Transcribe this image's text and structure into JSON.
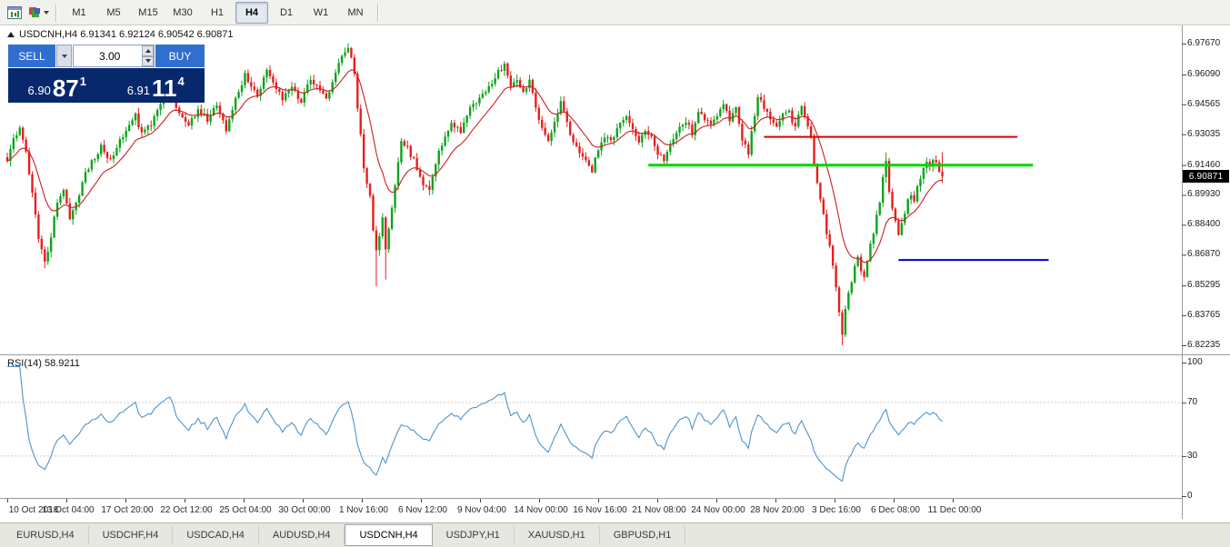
{
  "toolbar": {
    "timeframes": [
      {
        "label": "M1",
        "active": false
      },
      {
        "label": "M5",
        "active": false
      },
      {
        "label": "M15",
        "active": false
      },
      {
        "label": "M30",
        "active": false
      },
      {
        "label": "H1",
        "active": false
      },
      {
        "label": "H4",
        "active": true
      },
      {
        "label": "D1",
        "active": false
      },
      {
        "label": "W1",
        "active": false
      },
      {
        "label": "MN",
        "active": false
      }
    ]
  },
  "chart": {
    "title": "USDCNH,H4 6.91341 6.92124 6.90542 6.90871",
    "current_price": "6.90871"
  },
  "one_click": {
    "sell_label": "SELL",
    "buy_label": "BUY",
    "lot_size": "3.00",
    "sell_price": {
      "prefix": "6.90",
      "big": "87",
      "sup": "1"
    },
    "buy_price": {
      "prefix": "6.91",
      "big": "11",
      "sup": "4"
    }
  },
  "rsi": {
    "label": "RSI(14) 58.9211"
  },
  "tabs": [
    {
      "label": "EURUSD,H4",
      "active": false
    },
    {
      "label": "USDCHF,H4",
      "active": false
    },
    {
      "label": "USDCAD,H4",
      "active": false
    },
    {
      "label": "AUDUSD,H4",
      "active": false
    },
    {
      "label": "USDCNH,H4",
      "active": true
    },
    {
      "label": "USDJPY,H1",
      "active": false
    },
    {
      "label": "XAUUSD,H1",
      "active": false
    },
    {
      "label": "GBPUSD,H1",
      "active": false
    }
  ],
  "colors": {
    "candle_up": "#0ea31d",
    "candle_down": "#e32020",
    "ma_line": "#cc2020",
    "rsi_line": "#4f94cd",
    "price_tag_bg": "#000000",
    "panel_navy": "#08286d",
    "button_blue": "#306fd0"
  },
  "chart_data": {
    "type": "candlestick",
    "symbol": "USDCNH",
    "timeframe": "H4",
    "ohlc_current": {
      "open": 6.91341,
      "high": 6.92124,
      "low": 6.90542,
      "close": 6.90871
    },
    "price_axis": {
      "min": 6.82235,
      "max": 6.9767,
      "labels": [
        "6.97670",
        "6.96090",
        "6.94565",
        "6.93035",
        "6.91460",
        "6.89930",
        "6.88400",
        "6.86870",
        "6.85295",
        "6.83765",
        "6.82235"
      ]
    },
    "time_axis": {
      "labels": [
        "10 Oct 2018",
        "13 Oct 04:00",
        "17 Oct 20:00",
        "22 Oct 12:00",
        "25 Oct 04:00",
        "30 Oct 00:00",
        "1 Nov 16:00",
        "6 Nov 12:00",
        "9 Nov 04:00",
        "14 Nov 00:00",
        "16 Nov 16:00",
        "21 Nov 08:00",
        "24 Nov 00:00",
        "28 Nov 20:00",
        "3 Dec 16:00",
        "6 Dec 08:00",
        "11 Dec 00:00"
      ]
    },
    "bars_total": 300,
    "price_path_anchors": [
      [
        0,
        6.918
      ],
      [
        2,
        6.928
      ],
      [
        4,
        6.934
      ],
      [
        6,
        6.922
      ],
      [
        8,
        6.9
      ],
      [
        10,
        6.878
      ],
      [
        12,
        6.864
      ],
      [
        14,
        6.878
      ],
      [
        16,
        6.896
      ],
      [
        18,
        6.903
      ],
      [
        20,
        6.888
      ],
      [
        22,
        6.895
      ],
      [
        25,
        6.911
      ],
      [
        28,
        6.918
      ],
      [
        30,
        6.924
      ],
      [
        33,
        6.917
      ],
      [
        36,
        6.928
      ],
      [
        39,
        6.934
      ],
      [
        41,
        6.94
      ],
      [
        43,
        6.93
      ],
      [
        46,
        6.936
      ],
      [
        49,
        6.946
      ],
      [
        52,
        6.953
      ],
      [
        55,
        6.941
      ],
      [
        58,
        6.935
      ],
      [
        61,
        6.943
      ],
      [
        64,
        6.938
      ],
      [
        67,
        6.945
      ],
      [
        70,
        6.932
      ],
      [
        73,
        6.948
      ],
      [
        76,
        6.961
      ],
      [
        78,
        6.955
      ],
      [
        80,
        6.95
      ],
      [
        83,
        6.964
      ],
      [
        85,
        6.957
      ],
      [
        88,
        6.949
      ],
      [
        91,
        6.954
      ],
      [
        94,
        6.946
      ],
      [
        97,
        6.959
      ],
      [
        100,
        6.952
      ],
      [
        102,
        6.948
      ],
      [
        105,
        6.963
      ],
      [
        107,
        6.97
      ],
      [
        109,
        6.9755
      ],
      [
        111,
        6.962
      ],
      [
        112,
        6.944
      ],
      [
        113,
        6.93
      ],
      [
        114,
        6.914
      ],
      [
        115,
        6.905
      ],
      [
        116,
        6.899
      ],
      [
        117,
        6.882
      ],
      [
        118,
        6.87
      ],
      [
        119,
        6.878
      ],
      [
        120,
        6.888
      ],
      [
        121,
        6.872
      ],
      [
        122,
        6.882
      ],
      [
        124,
        6.905
      ],
      [
        126,
        6.927
      ],
      [
        128,
        6.923
      ],
      [
        130,
        6.917
      ],
      [
        133,
        6.905
      ],
      [
        135,
        6.902
      ],
      [
        138,
        6.922
      ],
      [
        140,
        6.928
      ],
      [
        142,
        6.935
      ],
      [
        145,
        6.932
      ],
      [
        148,
        6.944
      ],
      [
        151,
        6.949
      ],
      [
        154,
        6.955
      ],
      [
        157,
        6.962
      ],
      [
        159,
        6.966
      ],
      [
        161,
        6.954
      ],
      [
        163,
        6.958
      ],
      [
        165,
        6.952
      ],
      [
        167,
        6.957
      ],
      [
        169,
        6.944
      ],
      [
        171,
        6.934
      ],
      [
        173,
        6.928
      ],
      [
        175,
        6.936
      ],
      [
        177,
        6.946
      ],
      [
        179,
        6.936
      ],
      [
        181,
        6.926
      ],
      [
        184,
        6.918
      ],
      [
        187,
        6.912
      ],
      [
        189,
        6.922
      ],
      [
        191,
        6.93
      ],
      [
        193,
        6.926
      ],
      [
        195,
        6.933
      ],
      [
        198,
        6.939
      ],
      [
        200,
        6.933
      ],
      [
        202,
        6.927
      ],
      [
        204,
        6.932
      ],
      [
        206,
        6.929
      ],
      [
        208,
        6.921
      ],
      [
        210,
        6.917
      ],
      [
        213,
        6.928
      ],
      [
        215,
        6.934
      ],
      [
        217,
        6.937
      ],
      [
        219,
        6.931
      ],
      [
        221,
        6.943
      ],
      [
        223,
        6.938
      ],
      [
        225,
        6.935
      ],
      [
        227,
        6.941
      ],
      [
        229,
        6.945
      ],
      [
        231,
        6.937
      ],
      [
        233,
        6.943
      ],
      [
        235,
        6.928
      ],
      [
        237,
        6.921
      ],
      [
        240,
        6.95
      ],
      [
        242,
        6.944
      ],
      [
        244,
        6.938
      ],
      [
        246,
        6.934
      ],
      [
        248,
        6.94
      ],
      [
        250,
        6.942
      ],
      [
        252,
        6.933
      ],
      [
        254,
        6.945
      ],
      [
        255,
        6.94
      ],
      [
        256,
        6.934
      ],
      [
        257,
        6.928
      ],
      [
        258,
        6.916
      ],
      [
        259,
        6.906
      ],
      [
        260,
        6.898
      ],
      [
        261,
        6.89
      ],
      [
        262,
        6.88
      ],
      [
        263,
        6.872
      ],
      [
        264,
        6.862
      ],
      [
        265,
        6.852
      ],
      [
        266,
        6.838
      ],
      [
        267,
        6.828
      ],
      [
        268,
        6.84
      ],
      [
        269,
        6.848
      ],
      [
        270,
        6.855
      ],
      [
        271,
        6.862
      ],
      [
        272,
        6.868
      ],
      [
        273,
        6.86
      ],
      [
        274,
        6.856
      ],
      [
        275,
        6.866
      ],
      [
        276,
        6.874
      ],
      [
        277,
        6.88
      ],
      [
        278,
        6.888
      ],
      [
        279,
        6.896
      ],
      [
        280,
        6.908
      ],
      [
        281,
        6.917
      ],
      [
        282,
        6.9
      ],
      [
        283,
        6.892
      ],
      [
        284,
        6.886
      ],
      [
        285,
        6.88
      ],
      [
        286,
        6.884
      ],
      [
        287,
        6.89
      ],
      [
        288,
        6.896
      ],
      [
        289,
        6.9
      ],
      [
        290,
        6.896
      ],
      [
        291,
        6.903
      ],
      [
        292,
        6.908
      ],
      [
        293,
        6.913
      ],
      [
        294,
        6.917
      ],
      [
        295,
        6.914
      ],
      [
        296,
        6.918
      ],
      [
        297,
        6.916
      ],
      [
        298,
        6.912
      ],
      [
        299,
        6.9087
      ]
    ],
    "pinned_highs": [
      [
        109,
        6.9769
      ],
      [
        240,
        6.9508
      ],
      [
        281,
        6.921
      ]
    ],
    "pinned_lows": [
      [
        12,
        6.8618
      ],
      [
        118,
        6.8525
      ],
      [
        121,
        6.856
      ],
      [
        267,
        6.8224
      ]
    ],
    "overlays": {
      "moving_average": {
        "type": "EMA",
        "period": 13,
        "color": "#cc2020"
      },
      "horizontal_lines": [
        {
          "name": "red-resistance",
          "price": 6.929,
          "color": "#e00000",
          "from_bar": 242,
          "to_bar": 323,
          "width": 2
        },
        {
          "name": "green-resistance",
          "price": 6.9145,
          "color": "#00d400",
          "from_bar": 205,
          "to_bar": 328,
          "width": 3
        },
        {
          "name": "blue-support",
          "price": 6.866,
          "color": "#0000cc",
          "from_bar": 285,
          "to_bar": 333,
          "width": 2
        }
      ]
    },
    "indicator_pane": {
      "name": "RSI",
      "period": 14,
      "current_value": 58.9211,
      "levels": [
        30,
        70
      ],
      "range": [
        0,
        100
      ],
      "axis_labels": [
        "100",
        "70",
        "30",
        "0"
      ],
      "axis_values": [
        100,
        70,
        30,
        0
      ],
      "line_color": "#4f94cd"
    }
  }
}
